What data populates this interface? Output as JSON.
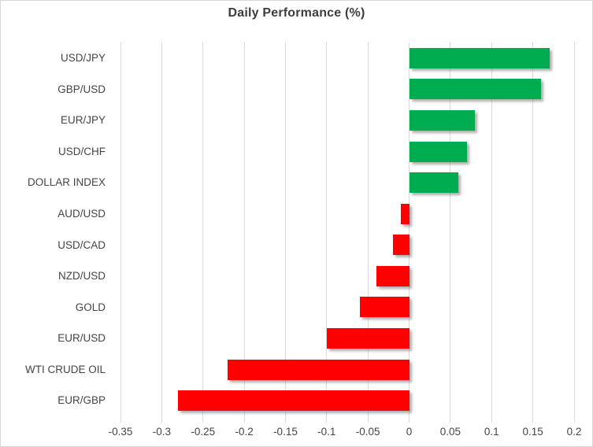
{
  "chart_data": {
    "type": "bar",
    "orientation": "horizontal",
    "title": "Daily Performance (%)",
    "categories": [
      "USD/JPY",
      "GBP/USD",
      "EUR/JPY",
      "USD/CHF",
      "DOLLAR INDEX",
      "AUD/USD",
      "USD/CAD",
      "NZD/USD",
      "GOLD",
      "EUR/USD",
      "WTI CRUDE OIL",
      "EUR/GBP"
    ],
    "values": [
      0.17,
      0.16,
      0.08,
      0.07,
      0.06,
      -0.01,
      -0.02,
      -0.04,
      -0.06,
      -0.1,
      -0.22,
      -0.28
    ],
    "xlim": [
      -0.35,
      0.2
    ],
    "xticks": [
      -0.35,
      -0.3,
      -0.25,
      -0.2,
      -0.15,
      -0.1,
      -0.05,
      0,
      0.05,
      0.1,
      0.15,
      0.2
    ],
    "xtick_labels": [
      "-0.35",
      "-0.3",
      "-0.25",
      "-0.2",
      "-0.15",
      "-0.1",
      "-0.05",
      "0",
      "0.05",
      "0.1",
      "0.15",
      "0.2"
    ],
    "grid": true,
    "legend": "none",
    "positive_color": "#00AC50",
    "negative_color": "#FF0000",
    "gridline_color": "#D9D9D9",
    "text_color": "#444444",
    "title_color": "#3D3D3D"
  }
}
